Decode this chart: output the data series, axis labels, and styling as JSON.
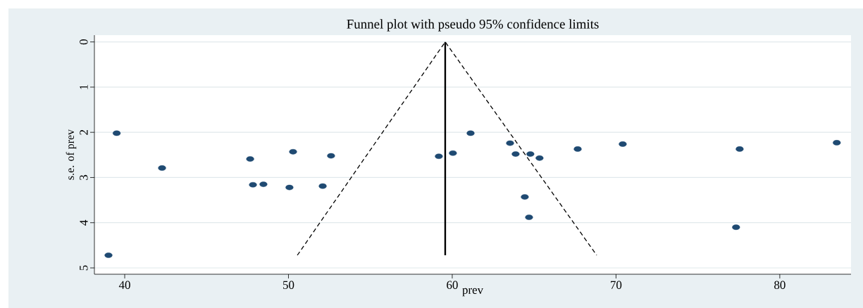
{
  "chart_data": {
    "type": "scatter",
    "title": "Funnel plot with pseudo 95% confidence limits",
    "xlabel": "prev",
    "ylabel": "s.e. of prev",
    "xlim": [
      38.15,
      84.35
    ],
    "ylim": [
      5.14,
      -0.15
    ],
    "xticks": [
      40,
      50,
      60,
      70,
      80
    ],
    "yticks": [
      0,
      1,
      2,
      3,
      4,
      5
    ],
    "grid": "y",
    "series": [
      {
        "marker": "circle",
        "color": "#1f4a72",
        "x": [
          39.51,
          39.01,
          42.28,
          47.66,
          47.83,
          48.47,
          50.28,
          50.06,
          52.6,
          52.09,
          59.18,
          60.04,
          61.12,
          63.53,
          63.87,
          64.77,
          65.33,
          64.43,
          64.69,
          67.66,
          70.41,
          77.55,
          77.33,
          83.48
        ],
        "values": [
          2.02,
          4.72,
          2.79,
          2.59,
          3.16,
          3.15,
          2.43,
          3.22,
          2.52,
          3.19,
          2.53,
          2.46,
          2.02,
          2.24,
          2.48,
          2.48,
          2.57,
          3.43,
          3.88,
          2.37,
          2.26,
          2.37,
          4.1,
          2.23
        ]
      },
      {
        "type": "line",
        "marker": "none",
        "line_style": "solid",
        "color": "#000000",
        "x": [
          59.57,
          59.57
        ],
        "values": [
          0,
          4.72
        ]
      },
      {
        "type": "line",
        "marker": "none",
        "line_style": "dashed",
        "color": "#000000",
        "x": [
          50.54,
          59.57,
          68.82
        ],
        "values": [
          4.72,
          0,
          4.72
        ]
      }
    ]
  }
}
